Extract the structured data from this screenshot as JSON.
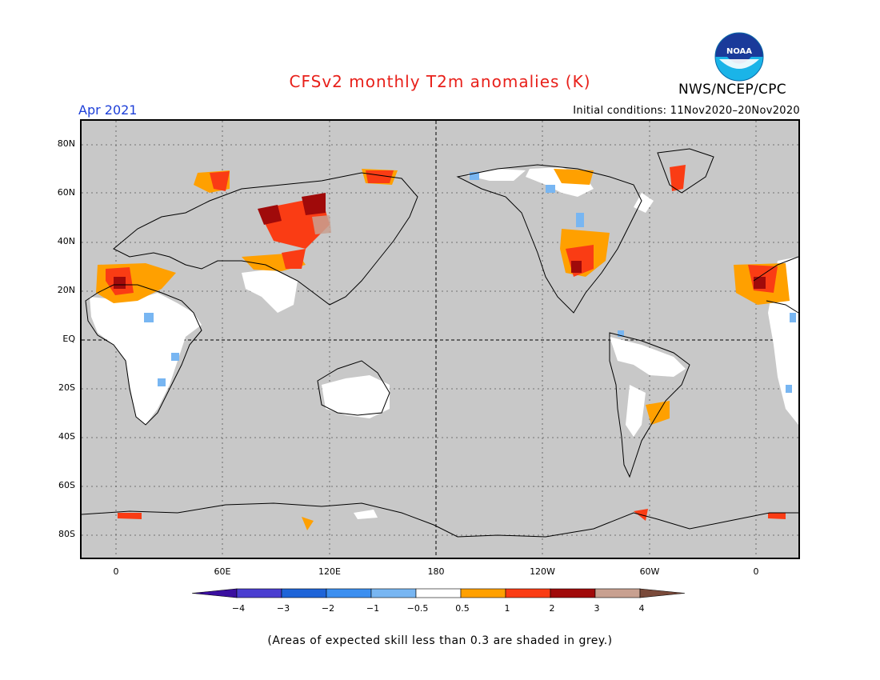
{
  "header": {
    "title": "CFSv2 monthly T2m anomalies (K)",
    "valid_month": "Apr 2021",
    "initial_conditions": "Initial conditions: 11Nov2020–20Nov2020",
    "agency": "NWS/NCEP/CPC",
    "logo_text": "NOAA"
  },
  "map": {
    "background_color": "#c8c8c8",
    "lat_labels": [
      "80N",
      "60N",
      "40N",
      "20N",
      "EQ",
      "20S",
      "40S",
      "60S",
      "80S"
    ],
    "lon_labels": [
      "0",
      "60E",
      "120E",
      "180",
      "120W",
      "60W",
      "0"
    ]
  },
  "colorbar": {
    "labels": [
      "−4",
      "−3",
      "−2",
      "−1",
      "−0.5",
      "0.5",
      "1",
      "2",
      "3",
      "4"
    ],
    "colors": [
      "#3a0fa0",
      "#4a3ed0",
      "#1e64d8",
      "#3c8ff0",
      "#78b6f2",
      "#ffffff",
      "#ffa000",
      "#fa3c14",
      "#a00a0a",
      "#c8a090",
      "#7a4a3a"
    ]
  },
  "footer": {
    "note": "(Areas of expected skill less than 0.3 are shaded in grey.)"
  }
}
